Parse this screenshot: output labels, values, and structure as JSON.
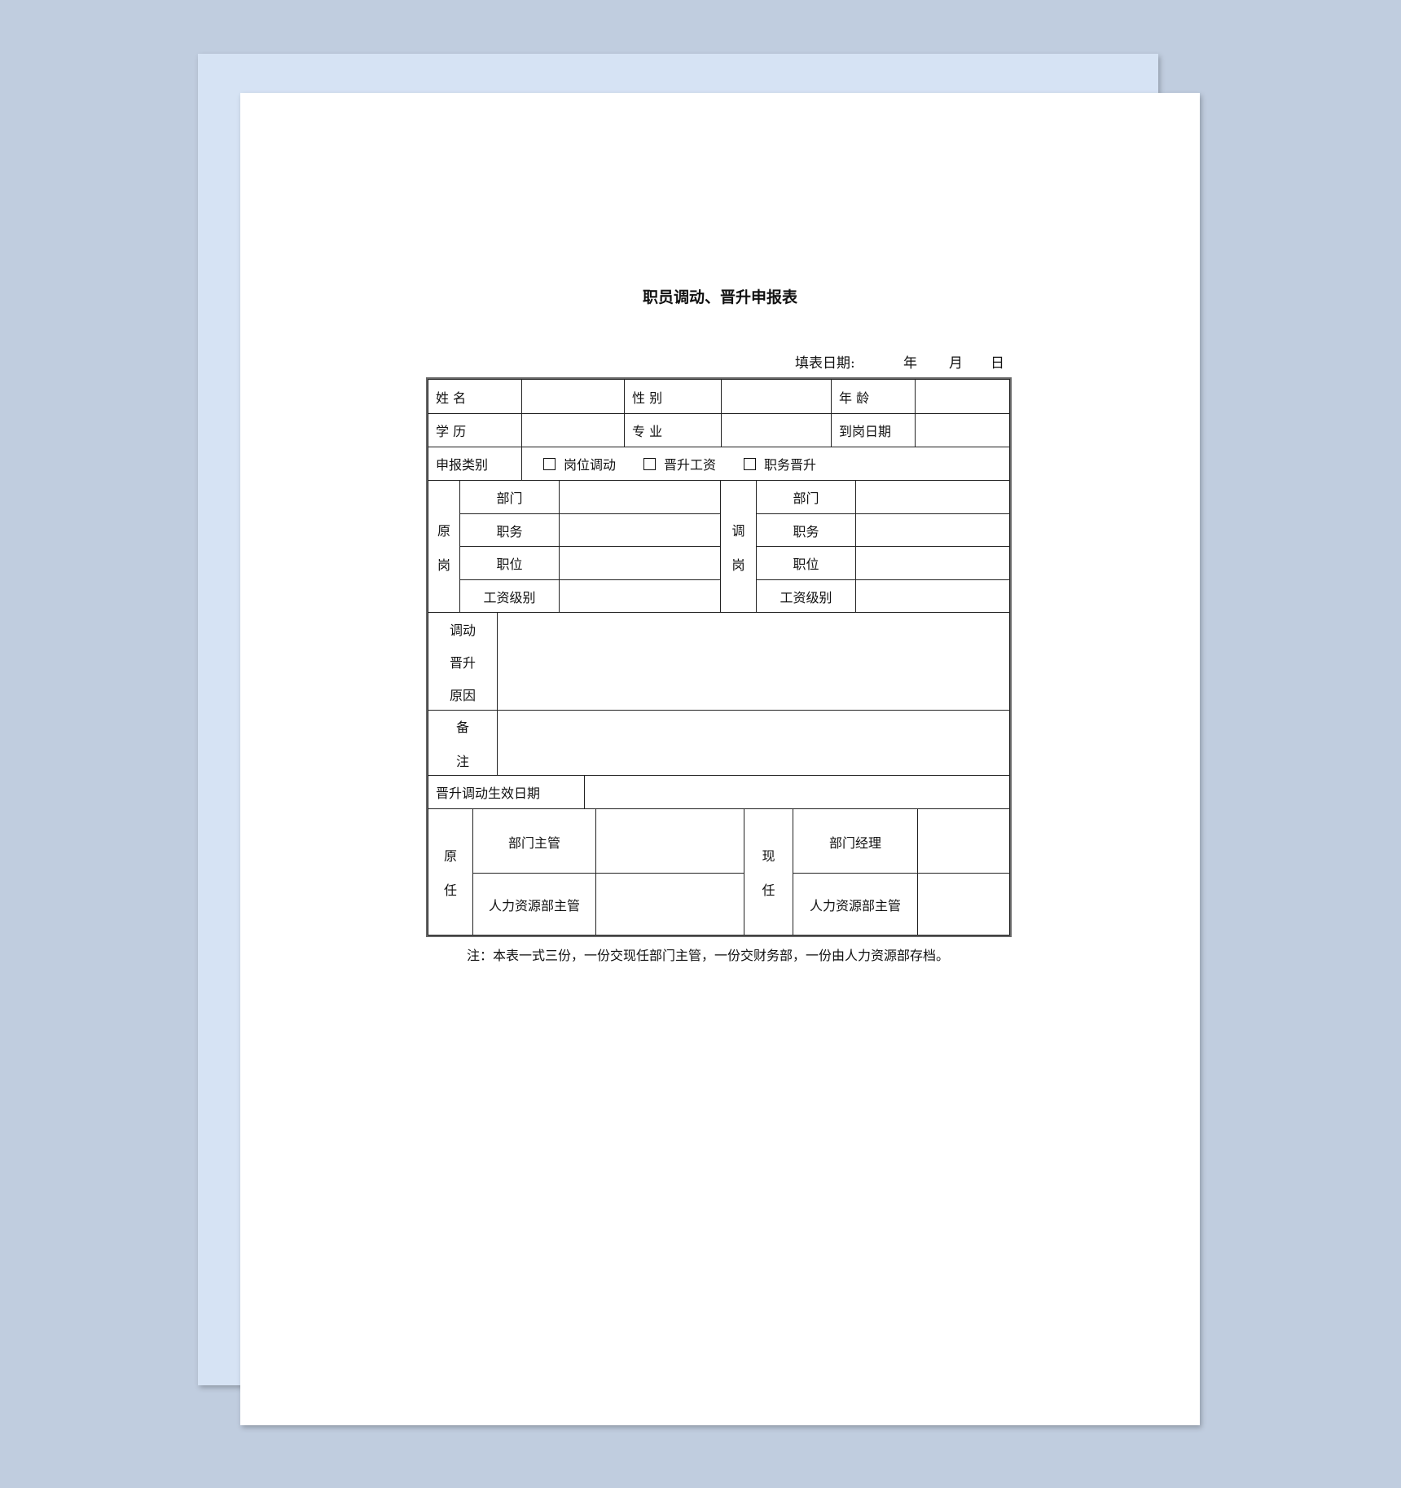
{
  "title": "职员调动、晋升申报表",
  "fill_date": {
    "label": "填表日期:",
    "year": "年",
    "month": "月",
    "day": "日"
  },
  "row1": {
    "name": "姓 名",
    "gender": "性 别",
    "age": "年 龄"
  },
  "row2": {
    "education": "学 历",
    "major": "专 业",
    "start_date": "到岗日期"
  },
  "category": {
    "label": "申报类别",
    "options": [
      "岗位调动",
      "晋升工资",
      "职务晋升"
    ]
  },
  "original_post": {
    "label": [
      "原",
      "岗"
    ],
    "fields": [
      "部门",
      "职务",
      "职位",
      "工资级别"
    ]
  },
  "new_post": {
    "label": [
      "调",
      "岗"
    ],
    "fields": [
      "部门",
      "职务",
      "职位",
      "工资级别"
    ]
  },
  "reason": {
    "label": [
      "调动",
      "晋升",
      "原因"
    ]
  },
  "remarks": {
    "label": [
      "备",
      "注"
    ]
  },
  "effective_date": {
    "label": "晋升调动生效日期"
  },
  "former": {
    "label": [
      "原",
      "任"
    ],
    "roles": [
      "部门主管",
      "人力资源部主管"
    ]
  },
  "current": {
    "label": [
      "现",
      "任"
    ],
    "roles": [
      "部门经理",
      "人力资源部主管"
    ]
  },
  "note": "注：本表一式三份，一份交现任部门主管，一份交财务部，一份由人力资源部存档。"
}
